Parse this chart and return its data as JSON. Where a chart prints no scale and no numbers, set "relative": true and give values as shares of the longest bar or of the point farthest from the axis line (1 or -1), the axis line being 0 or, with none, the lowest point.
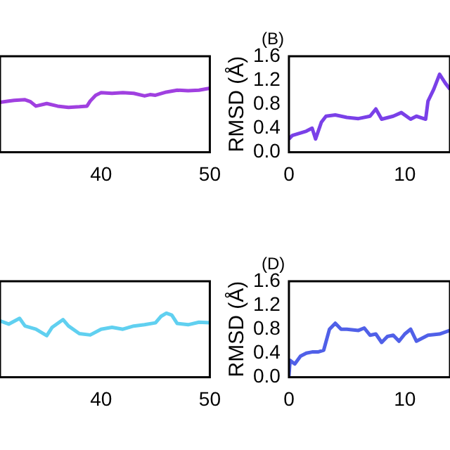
{
  "chart_data": [
    {
      "type": "line",
      "relative": true,
      "xlim": [
        30.7,
        50
      ],
      "xticks": [
        40,
        50
      ],
      "grid": false,
      "legend": false,
      "marker": "none",
      "series": [
        {
          "color": "#a040e0",
          "x": [
            30.7,
            31.5,
            32,
            33,
            33.5,
            34,
            35,
            36,
            37,
            38,
            38.7,
            39,
            39.5,
            40,
            41,
            42,
            43,
            44,
            44.5,
            45,
            46,
            47,
            48,
            49,
            50
          ],
          "values": [
            0.78,
            0.8,
            0.81,
            0.82,
            0.79,
            0.72,
            0.76,
            0.72,
            0.7,
            0.71,
            0.72,
            0.8,
            0.89,
            0.93,
            0.92,
            0.93,
            0.92,
            0.88,
            0.9,
            0.89,
            0.94,
            0.97,
            0.96,
            0.97,
            1
          ]
        }
      ]
    },
    {
      "type": "line",
      "annotations": [
        "(B)"
      ],
      "ylabel": "RMSD (Å)",
      "xlim": [
        0,
        13.9
      ],
      "xticks": [
        0,
        10
      ],
      "ylim": [
        0,
        1.6
      ],
      "yticks": [
        {
          "value": 0,
          "label": "0.0"
        },
        0.4,
        0.8,
        1.2,
        1.6
      ],
      "grid": false,
      "legend": false,
      "marker": "none",
      "series": [
        {
          "color": "#7a40e8",
          "x": [
            0,
            0.3,
            1,
            1.5,
            2,
            2.3,
            2.8,
            3.2,
            4,
            5,
            6,
            7,
            7.5,
            8,
            9,
            9.7,
            10.5,
            11,
            11.8,
            12,
            12.5,
            13,
            13.5,
            13.9
          ],
          "values": [
            0.22,
            0.28,
            0.32,
            0.35,
            0.4,
            0.22,
            0.5,
            0.6,
            0.62,
            0.58,
            0.56,
            0.6,
            0.72,
            0.55,
            0.6,
            0.66,
            0.55,
            0.6,
            0.55,
            0.85,
            1.05,
            1.3,
            1.15,
            1.05
          ]
        }
      ]
    },
    {
      "type": "line",
      "relative": true,
      "xlim": [
        30.7,
        50
      ],
      "xticks": [
        40,
        50
      ],
      "grid": false,
      "legend": false,
      "marker": "none",
      "series": [
        {
          "color": "#60d0f0",
          "x": [
            30.7,
            31.5,
            32.5,
            33,
            34,
            35,
            35.5,
            36.5,
            37,
            38,
            39,
            40,
            41,
            42,
            43,
            44,
            45,
            45.5,
            46,
            46.5,
            47,
            48,
            49,
            50
          ],
          "values": [
            0.88,
            0.83,
            0.92,
            0.8,
            0.75,
            0.65,
            0.78,
            0.9,
            0.8,
            0.68,
            0.66,
            0.75,
            0.78,
            0.75,
            0.8,
            0.82,
            0.85,
            0.95,
            1,
            0.97,
            0.84,
            0.82,
            0.86,
            0.85
          ]
        }
      ]
    },
    {
      "type": "line",
      "annotations": [
        "(D)"
      ],
      "ylabel": "RMSD (Å)",
      "xlim": [
        0,
        13.9
      ],
      "xticks": [
        0,
        10
      ],
      "ylim": [
        0,
        1.6
      ],
      "yticks": [
        {
          "value": 0,
          "label": "0.0"
        },
        0.4,
        0.8,
        1.2,
        1.6
      ],
      "grid": false,
      "legend": false,
      "marker": "none",
      "series": [
        {
          "color": "#5060e8",
          "x": [
            0,
            0.1,
            0.5,
            1,
            1.5,
            2,
            2.5,
            3,
            3.5,
            4,
            4.5,
            5,
            6,
            6.5,
            7,
            7.5,
            8,
            8.5,
            9,
            9.5,
            10,
            10.5,
            11,
            11.5,
            12,
            13,
            13.9
          ],
          "values": [
            0.02,
            0.28,
            0.22,
            0.35,
            0.4,
            0.42,
            0.42,
            0.45,
            0.8,
            0.9,
            0.8,
            0.8,
            0.78,
            0.82,
            0.7,
            0.72,
            0.58,
            0.68,
            0.7,
            0.6,
            0.72,
            0.8,
            0.6,
            0.65,
            0.7,
            0.72,
            0.78
          ]
        }
      ]
    }
  ]
}
